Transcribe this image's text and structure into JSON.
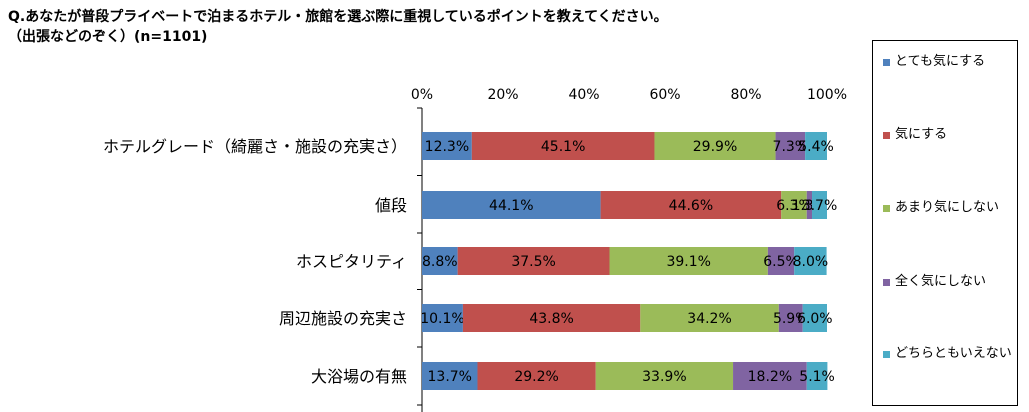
{
  "title_line1": "Q.あなたが普段プライベートで泊まるホテル・旅館を選ぶ際に重視しているポイントを教えてください。",
  "title_line2": "（出張などのぞく）(n=1101)",
  "colors": [
    "#4F81BD",
    "#C0504D",
    "#9BBB59",
    "#8064A2",
    "#4BACC6"
  ],
  "chart_data": {
    "type": "bar",
    "stacked": true,
    "orientation": "horizontal",
    "percent": true,
    "x_ticks": [
      "0%",
      "20%",
      "40%",
      "60%",
      "80%",
      "100%"
    ],
    "xlim": [
      0,
      100
    ],
    "legend_position": "right",
    "categories": [
      "ホテルグレード（綺麗さ・施設の充実さ）",
      "値段",
      "ホスピタリティ",
      "周辺施設の充実さ",
      "大浴場の有無"
    ],
    "series": [
      {
        "name": "とても気にする",
        "values": [
          12.3,
          44.1,
          8.8,
          10.1,
          13.7
        ],
        "labels": [
          "12.3%",
          "44.1%",
          "8.8%",
          "10.1%",
          "13.7%"
        ]
      },
      {
        "name": "気にする",
        "values": [
          45.1,
          44.6,
          37.5,
          43.8,
          29.2
        ],
        "labels": [
          "45.1%",
          "44.6%",
          "37.5%",
          "43.8%",
          "29.2%"
        ]
      },
      {
        "name": "あまり気にしない",
        "values": [
          29.9,
          6.3,
          39.1,
          34.2,
          33.9
        ],
        "labels": [
          "29.9%",
          "6.3%",
          "39.1%",
          "34.2%",
          "33.9%"
        ]
      },
      {
        "name": "全く気にしない",
        "values": [
          7.3,
          1.3,
          6.5,
          5.9,
          18.2
        ],
        "labels": [
          "7.3%",
          "1.3%",
          "6.5%",
          "5.9%",
          "18.2%"
        ]
      },
      {
        "name": "どちらともいえない",
        "values": [
          5.4,
          3.7,
          8.0,
          6.0,
          5.1
        ],
        "labels": [
          "5.4%",
          "3.7%",
          "8.0%",
          "6.0%",
          "5.1%"
        ]
      }
    ]
  }
}
